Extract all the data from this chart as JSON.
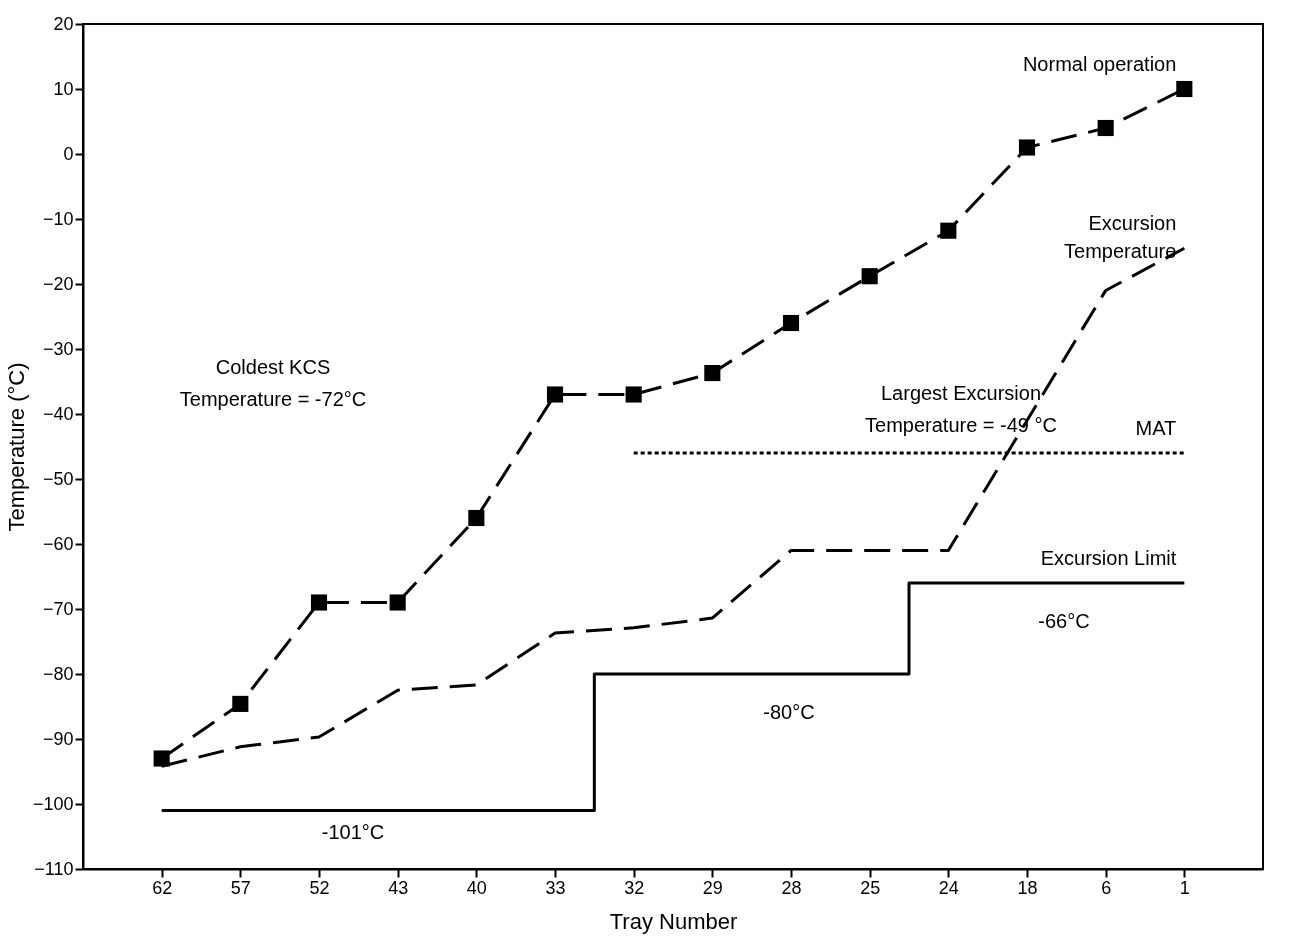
{
  "chart_data": {
    "type": "line",
    "xlabel": "Tray Number",
    "ylabel": "Temperature (°C)",
    "categories": [
      "62",
      "57",
      "52",
      "43",
      "40",
      "33",
      "32",
      "29",
      "28",
      "25",
      "24",
      "18",
      "6",
      "1"
    ],
    "ylim": [
      -110,
      20
    ],
    "yticks": [
      -110,
      -100,
      -90,
      -80,
      -70,
      -60,
      -50,
      -40,
      -30,
      -20,
      -10,
      0,
      10,
      20
    ],
    "grid": false,
    "series": [
      {
        "name": "Normal operation",
        "color": "#000000",
        "line_style": "dashed",
        "marker": "square",
        "values": [
          -93,
          -84.6,
          -69,
          -69,
          -56,
          -37,
          -37,
          -33.7,
          -26,
          -18.8,
          -11.8,
          1,
          4,
          10
        ]
      },
      {
        "name": "Excursion\nTemperature",
        "color": "#000000",
        "line_style": "dashed",
        "marker": "none",
        "values": [
          -94.2,
          -91.2,
          -89.7,
          -82.5,
          -81.7,
          -73.7,
          -72.9,
          -71.4,
          -61,
          -61,
          -61,
          -41,
          -21,
          -14.5
        ]
      },
      {
        "name": "MAT",
        "type": "step",
        "color": "#000000",
        "line_style": "dotted",
        "marker": "none",
        "values": [
          null,
          null,
          null,
          null,
          null,
          null,
          -46,
          -46,
          -46,
          -46,
          -46,
          -46,
          -46,
          -46
        ]
      },
      {
        "name": "Excursion Limit",
        "type": "step",
        "color": "#000000",
        "line_style": "solid",
        "marker": "none",
        "values": [
          -101,
          -101,
          -101,
          -101,
          -101,
          -101,
          -80,
          -80,
          -80,
          -80,
          -66,
          -66,
          -66,
          -66
        ]
      }
    ],
    "annotations": [
      "Coldest KCS\nTemperature = -72°C",
      "Largest  Excursion\nTemperature = -49 °C",
      "-101°C",
      "-80°C",
      "-66°C"
    ]
  }
}
